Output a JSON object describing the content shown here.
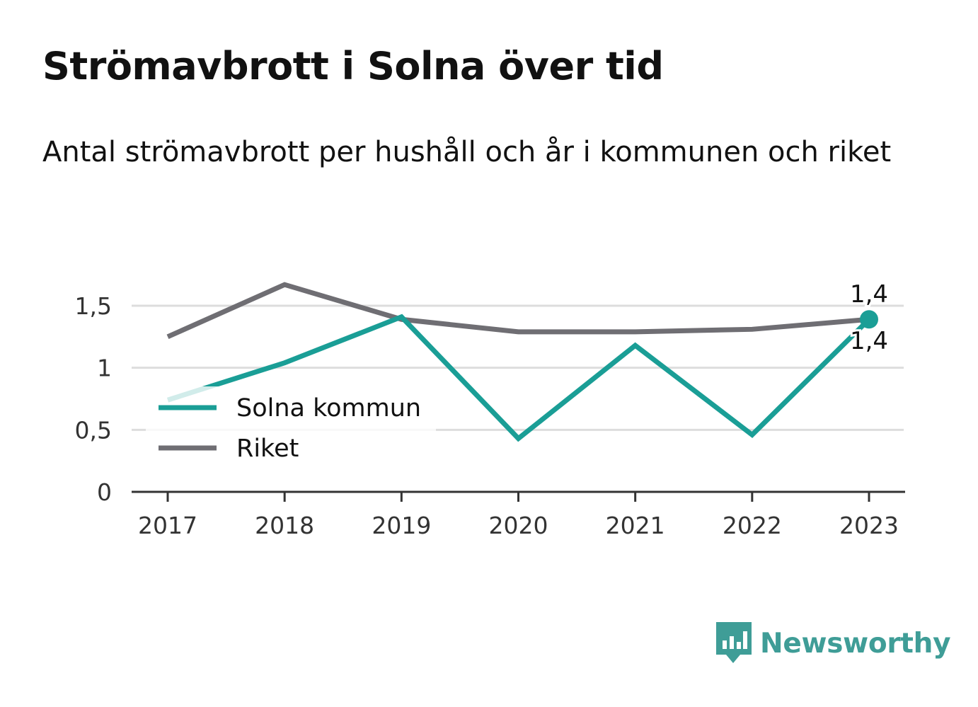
{
  "title": "Strömavbrott i Solna över tid",
  "subtitle": "Antal strömavbrott per hushåll och år i kommunen och riket",
  "brand": {
    "name": "Newsworthy",
    "icon": "newsworthy-logo-icon",
    "color": "#3f9d97"
  },
  "chart_data": {
    "type": "line",
    "x": [
      "2017",
      "2018",
      "2019",
      "2020",
      "2021",
      "2022",
      "2023"
    ],
    "ylim": [
      0,
      1.75
    ],
    "yticks": [
      0,
      0.5,
      1,
      1.5
    ],
    "ytick_labels": [
      "0",
      "0,5",
      "1",
      "1,5"
    ],
    "grid": true,
    "legend": "bottom-left",
    "series": [
      {
        "name": "Solna kommun",
        "color": "#1a9e96",
        "values": [
          0.74,
          1.04,
          1.41,
          0.43,
          1.18,
          0.46,
          1.39
        ],
        "end_label": "1,4"
      },
      {
        "name": "Riket",
        "color": "#6f6e73",
        "values": [
          1.25,
          1.67,
          1.39,
          1.29,
          1.29,
          1.31,
          1.39
        ],
        "end_label": "1,4"
      }
    ]
  }
}
